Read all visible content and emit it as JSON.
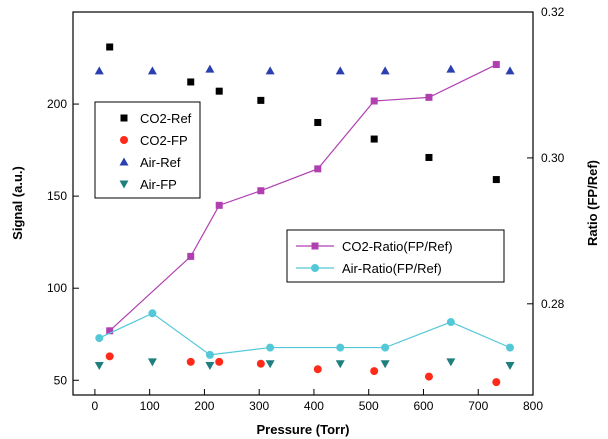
{
  "chart_data": {
    "type": "scatter",
    "xlabel": "Pressure (Torr)",
    "ylabel": "Signal (a.u.)",
    "y2label": "Ratio (FP/Ref)",
    "xlim": [
      -40,
      800
    ],
    "ylim": [
      42,
      250
    ],
    "y2lim": [
      0.2675,
      0.32
    ],
    "x_ticks": [
      "0",
      "100",
      "200",
      "300",
      "400",
      "500",
      "600",
      "700",
      "800"
    ],
    "y_ticks": [
      "50",
      "100",
      "150",
      "200"
    ],
    "y2_ticks": [
      "0.28",
      "0.30",
      "0.32"
    ],
    "legend1_placement": "left",
    "legend2_placement": "center-right",
    "series": [
      {
        "name": "CO2-Ref",
        "axis": "left",
        "marker": "square",
        "color": "#000000",
        "line": false,
        "points": [
          [
            27,
            231
          ],
          [
            175,
            212
          ],
          [
            227,
            207
          ],
          [
            303,
            202
          ],
          [
            407,
            190
          ],
          [
            510,
            181
          ],
          [
            610,
            171
          ],
          [
            733,
            159
          ]
        ]
      },
      {
        "name": "CO2-FP",
        "axis": "left",
        "marker": "circle",
        "color": "#ff2a1a",
        "line": false,
        "points": [
          [
            27,
            63
          ],
          [
            175,
            60
          ],
          [
            227,
            60
          ],
          [
            303,
            59
          ],
          [
            407,
            56
          ],
          [
            510,
            55
          ],
          [
            610,
            52
          ],
          [
            733,
            49
          ]
        ]
      },
      {
        "name": "Air-Ref",
        "axis": "left",
        "marker": "triangle-up",
        "color": "#2a3fb0",
        "line": false,
        "points": [
          [
            8,
            218
          ],
          [
            105,
            218
          ],
          [
            210,
            219
          ],
          [
            320,
            218
          ],
          [
            448,
            218
          ],
          [
            530,
            218
          ],
          [
            650,
            219
          ],
          [
            758,
            218
          ]
        ]
      },
      {
        "name": "Air-FP",
        "axis": "left",
        "marker": "triangle-down",
        "color": "#1f7f7f",
        "line": false,
        "points": [
          [
            8,
            58
          ],
          [
            105,
            60
          ],
          [
            210,
            58
          ],
          [
            320,
            59
          ],
          [
            448,
            59
          ],
          [
            530,
            59
          ],
          [
            650,
            60
          ],
          [
            758,
            58
          ]
        ]
      },
      {
        "name": "CO2-Ratio(FP/Ref)",
        "axis": "right",
        "marker": "square",
        "color": "#b040b0",
        "line": true,
        "points": [
          [
            27,
            0.2763
          ],
          [
            175,
            0.2865
          ],
          [
            227,
            0.2935
          ],
          [
            303,
            0.2955
          ],
          [
            407,
            0.2985
          ],
          [
            510,
            0.3078
          ],
          [
            610,
            0.3083
          ],
          [
            733,
            0.3128
          ]
        ]
      },
      {
        "name": "Air-Ratio(FP/Ref)",
        "axis": "right",
        "marker": "circle",
        "color": "#55c8d8",
        "line": true,
        "points": [
          [
            8,
            0.2753
          ],
          [
            105,
            0.2787
          ],
          [
            210,
            0.273
          ],
          [
            320,
            0.274
          ],
          [
            448,
            0.274
          ],
          [
            530,
            0.274
          ],
          [
            650,
            0.2775
          ],
          [
            758,
            0.274
          ]
        ]
      }
    ],
    "legend1": [
      "CO2-Ref",
      "CO2-FP",
      "Air-Ref",
      "Air-FP"
    ],
    "legend2": [
      "CO2-Ratio(FP/Ref)",
      "Air-Ratio(FP/Ref)"
    ]
  }
}
